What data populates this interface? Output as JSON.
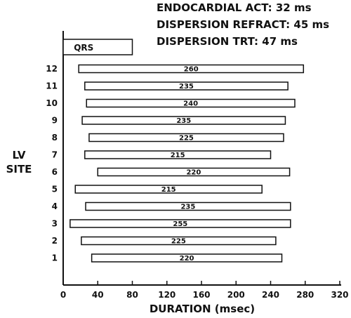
{
  "chart_data": {
    "type": "bar",
    "orientation": "horizontal-range",
    "header_lines": [
      "ENDOCARDIAL ACT: 32 ms",
      "DISPERSION REFRACT: 45 ms",
      "DISPERSION TRT: 47 ms"
    ],
    "xlabel": "DURATION (msec)",
    "ylabel_lines": [
      "LV",
      "SITE"
    ],
    "xlim": [
      0,
      320
    ],
    "xticks": [
      0,
      40,
      80,
      120,
      160,
      200,
      240,
      280,
      320
    ],
    "grid": false,
    "qrs": {
      "label": "QRS",
      "start": 0,
      "end": 80
    },
    "sites": [
      {
        "site": "12",
        "start": 18,
        "end": 278,
        "label": "260"
      },
      {
        "site": "11",
        "start": 25,
        "end": 260,
        "label": "235"
      },
      {
        "site": "10",
        "start": 27,
        "end": 268,
        "label": "240"
      },
      {
        "site": "9",
        "start": 22,
        "end": 257,
        "label": "235"
      },
      {
        "site": "8",
        "start": 30,
        "end": 255,
        "label": "225"
      },
      {
        "site": "7",
        "start": 25,
        "end": 240,
        "label": "215"
      },
      {
        "site": "6",
        "start": 40,
        "end": 262,
        "label": "220"
      },
      {
        "site": "5",
        "start": 14,
        "end": 230,
        "label": "215"
      },
      {
        "site": "4",
        "start": 26,
        "end": 263,
        "label": "235"
      },
      {
        "site": "3",
        "start": 8,
        "end": 263,
        "label": "255"
      },
      {
        "site": "2",
        "start": 21,
        "end": 246,
        "label": "225"
      },
      {
        "site": "1",
        "start": 33,
        "end": 253,
        "label": "220"
      }
    ]
  }
}
